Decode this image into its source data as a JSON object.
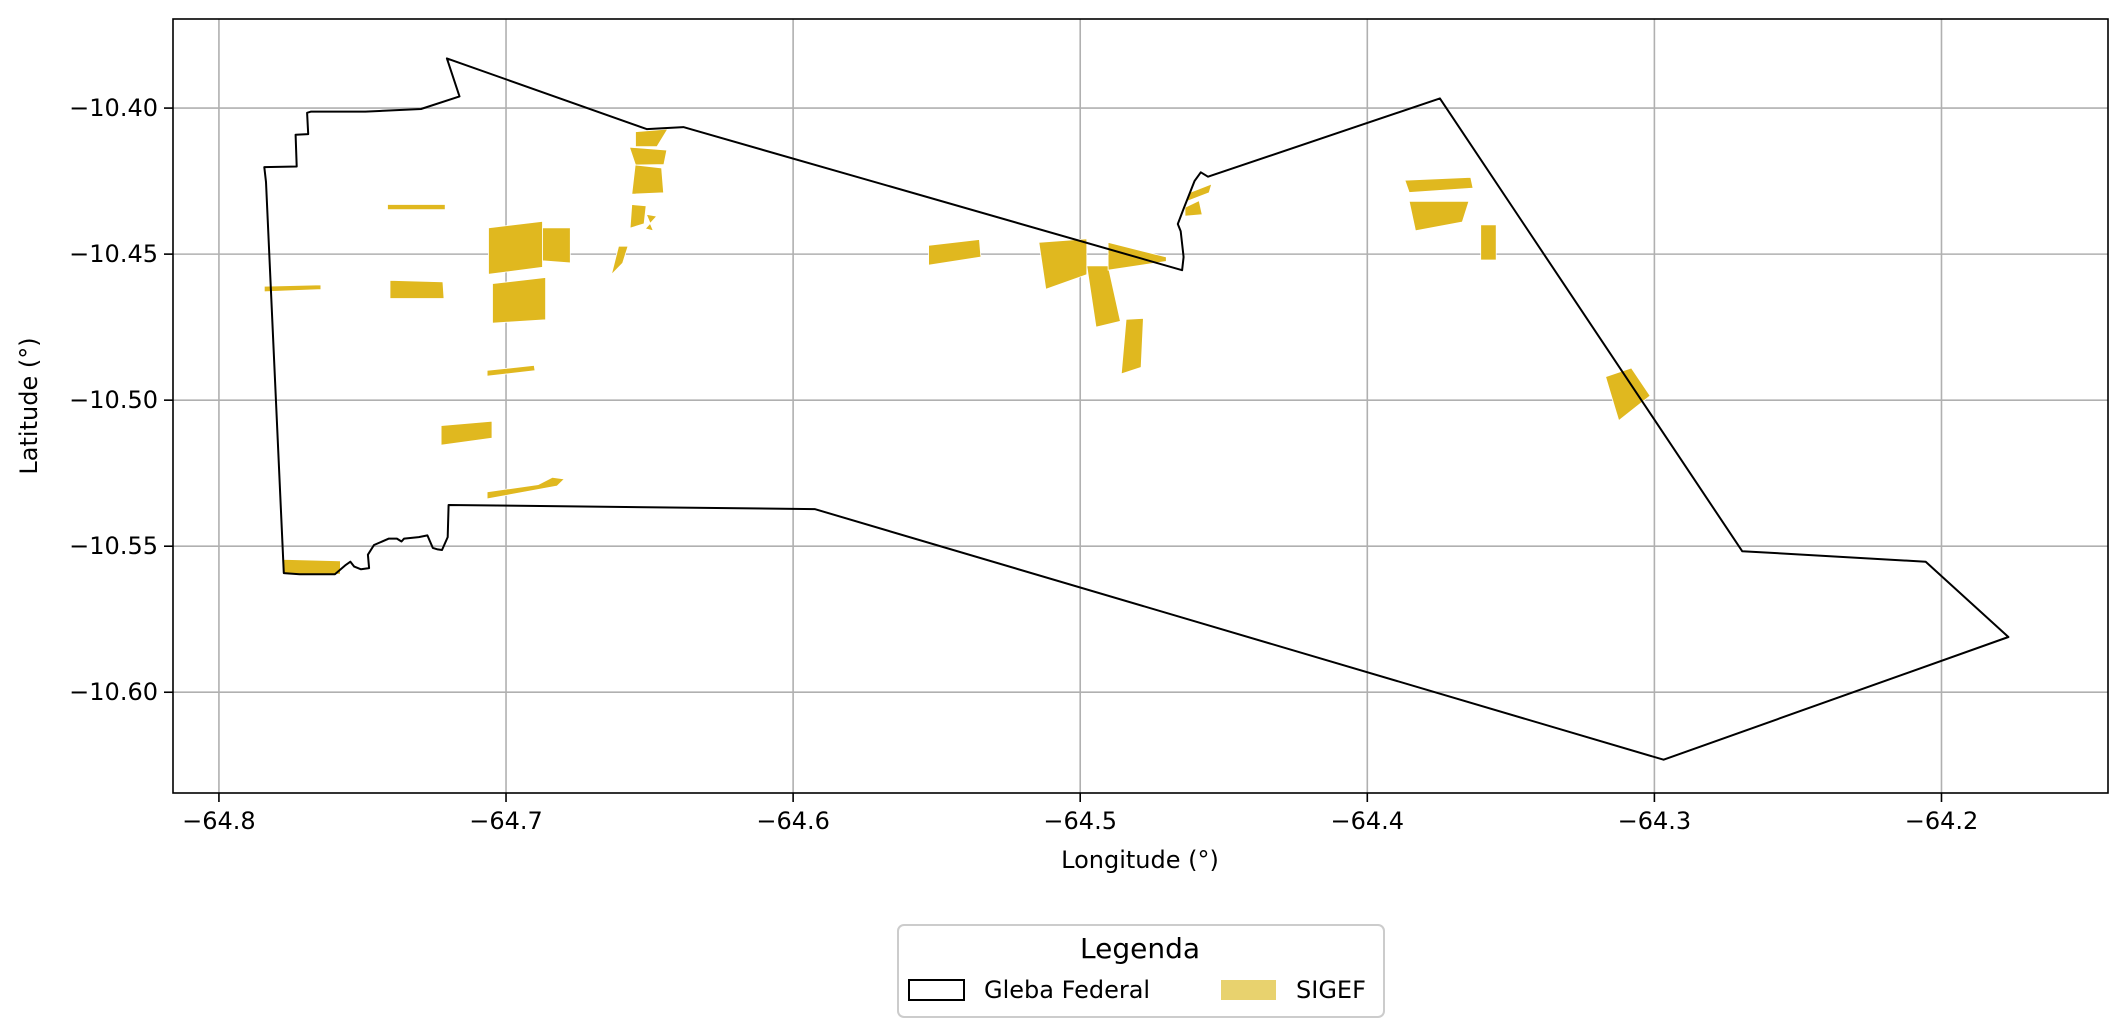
{
  "chart_data": {
    "type": "map",
    "xlabel": "Longitude (°)",
    "ylabel": "Latitude (°)",
    "xlim": [
      -64.816,
      -64.142
    ],
    "ylim": [
      -10.6345,
      -10.3695
    ],
    "grid": true,
    "x_ticks": [
      {
        "value": -64.8,
        "label": "−64.8"
      },
      {
        "value": -64.7,
        "label": "−64.7"
      },
      {
        "value": -64.6,
        "label": "−64.6"
      },
      {
        "value": -64.5,
        "label": "−64.5"
      },
      {
        "value": -64.4,
        "label": "−64.4"
      },
      {
        "value": -64.3,
        "label": "−64.3"
      },
      {
        "value": -64.2,
        "label": "−64.2"
      }
    ],
    "y_ticks": [
      {
        "value": -10.4,
        "label": "−10.40"
      },
      {
        "value": -10.45,
        "label": "−10.45"
      },
      {
        "value": -10.5,
        "label": "−10.50"
      },
      {
        "value": -10.55,
        "label": "−10.55"
      },
      {
        "value": -10.6,
        "label": "−10.60"
      }
    ],
    "legend": {
      "title": "Legenda",
      "placement": "below-center",
      "entries": [
        {
          "label": "Gleba Federal",
          "style": "outline",
          "color": "#000000"
        },
        {
          "label": "SIGEF",
          "style": "fill",
          "color": "#e8d26e"
        }
      ]
    },
    "gleba_boundary": {
      "name": "Gleba Federal",
      "stroke_color": "#000000",
      "coordinates": [
        [
          -64.7206,
          -10.383
        ],
        [
          -64.7162,
          -10.396
        ],
        [
          -64.7296,
          -10.4003
        ],
        [
          -64.749,
          -10.4012
        ],
        [
          -64.7679,
          -10.4012
        ],
        [
          -64.7693,
          -10.4016
        ],
        [
          -64.7689,
          -10.4089
        ],
        [
          -64.7733,
          -10.4091
        ],
        [
          -64.7729,
          -10.42
        ],
        [
          -64.7842,
          -10.4202
        ],
        [
          -64.7836,
          -10.4253
        ],
        [
          -64.7774,
          -10.5592
        ],
        [
          -64.7719,
          -10.5596
        ],
        [
          -64.7596,
          -10.5596
        ],
        [
          -64.7558,
          -10.5564
        ],
        [
          -64.7542,
          -10.5553
        ],
        [
          -64.7529,
          -10.557
        ],
        [
          -64.7505,
          -10.5579
        ],
        [
          -64.7477,
          -10.5575
        ],
        [
          -64.7481,
          -10.5529
        ],
        [
          -64.746,
          -10.5496
        ],
        [
          -64.7408,
          -10.5474
        ],
        [
          -64.738,
          -10.5474
        ],
        [
          -64.7364,
          -10.5484
        ],
        [
          -64.7355,
          -10.5474
        ],
        [
          -64.7304,
          -10.5469
        ],
        [
          -64.7274,
          -10.5463
        ],
        [
          -64.7255,
          -10.5506
        ],
        [
          -64.7238,
          -10.5511
        ],
        [
          -64.7223,
          -10.5513
        ],
        [
          -64.7203,
          -10.5469
        ],
        [
          -64.72,
          -10.5359
        ],
        [
          -64.5925,
          -10.5373
        ],
        [
          -64.2968,
          -10.6231
        ],
        [
          -64.1767,
          -10.5811
        ],
        [
          -64.2055,
          -10.5553
        ],
        [
          -64.2694,
          -10.5517
        ],
        [
          -64.3747,
          -10.3967
        ],
        [
          -64.4555,
          -10.4235
        ],
        [
          -64.458,
          -10.422
        ],
        [
          -64.4602,
          -10.425
        ],
        [
          -64.464,
          -10.4345
        ],
        [
          -64.466,
          -10.4397
        ],
        [
          -64.465,
          -10.4422
        ],
        [
          -64.464,
          -10.451
        ],
        [
          -64.4645,
          -10.4555
        ],
        [
          -64.6382,
          -10.4065
        ],
        [
          -64.651,
          -10.4072
        ],
        [
          -64.7206,
          -10.383
        ]
      ]
    },
    "sigef_parcels": {
      "name": "SIGEF",
      "fill_color": "#e0b81f",
      "polygons": [
        [
          [
            -64.7413,
            -10.433
          ],
          [
            -64.7212,
            -10.433
          ],
          [
            -64.7212,
            -10.4348
          ],
          [
            -64.7413,
            -10.4348
          ]
        ],
        [
          [
            -64.7061,
            -10.441
          ],
          [
            -64.7061,
            -10.4569
          ],
          [
            -64.6873,
            -10.4545
          ],
          [
            -64.6873,
            -10.4388
          ]
        ],
        [
          [
            -64.6873,
            -10.441
          ],
          [
            -64.6776,
            -10.441
          ],
          [
            -64.6776,
            -10.453
          ],
          [
            -64.6873,
            -10.4523
          ]
        ],
        [
          [
            -64.7047,
            -10.4601
          ],
          [
            -64.7047,
            -10.4736
          ],
          [
            -64.6862,
            -10.4725
          ],
          [
            -64.6862,
            -10.458
          ]
        ],
        [
          [
            -64.7404,
            -10.459
          ],
          [
            -64.722,
            -10.4595
          ],
          [
            -64.7216,
            -10.4652
          ],
          [
            -64.7404,
            -10.4652
          ]
        ],
        [
          [
            -64.7842,
            -10.461
          ],
          [
            -64.7645,
            -10.4605
          ],
          [
            -64.7645,
            -10.4621
          ],
          [
            -64.7842,
            -10.4629
          ]
        ],
        [
          [
            -64.7066,
            -10.4898
          ],
          [
            -64.6902,
            -10.4881
          ],
          [
            -64.6899,
            -10.4899
          ],
          [
            -64.7066,
            -10.4918
          ]
        ],
        [
          [
            -64.7226,
            -10.5087
          ],
          [
            -64.7226,
            -10.5154
          ],
          [
            -64.7049,
            -10.513
          ],
          [
            -64.7049,
            -10.5072
          ]
        ],
        [
          [
            -64.7066,
            -10.5314
          ],
          [
            -64.6888,
            -10.5289
          ],
          [
            -64.6838,
            -10.5264
          ],
          [
            -64.6797,
            -10.527
          ],
          [
            -64.6822,
            -10.5294
          ],
          [
            -64.7066,
            -10.5338
          ]
        ],
        [
          [
            -64.7778,
            -10.5545
          ],
          [
            -64.7577,
            -10.555
          ],
          [
            -64.7577,
            -10.5596
          ],
          [
            -64.7778,
            -10.5596
          ]
        ],
        [
          [
            -64.6549,
            -10.4081
          ],
          [
            -64.6549,
            -10.4132
          ],
          [
            -64.6474,
            -10.4132
          ],
          [
            -64.6437,
            -10.4072
          ]
        ],
        [
          [
            -64.657,
            -10.4134
          ],
          [
            -64.644,
            -10.4144
          ],
          [
            -64.645,
            -10.4193
          ],
          [
            -64.6549,
            -10.4195
          ]
        ],
        [
          [
            -64.655,
            -10.4195
          ],
          [
            -64.6458,
            -10.4205
          ],
          [
            -64.6451,
            -10.429
          ],
          [
            -64.6562,
            -10.4295
          ]
        ],
        [
          [
            -64.6562,
            -10.433
          ],
          [
            -64.6568,
            -10.4411
          ],
          [
            -64.6519,
            -10.4396
          ],
          [
            -64.6512,
            -10.4335
          ]
        ],
        [
          [
            -64.6511,
            -10.4364
          ],
          [
            -64.6475,
            -10.437
          ],
          [
            -64.6515,
            -10.4413
          ],
          [
            -64.6487,
            -10.442
          ]
        ],
        [
          [
            -64.6608,
            -10.4473
          ],
          [
            -64.6575,
            -10.4473
          ],
          [
            -64.6594,
            -10.4531
          ],
          [
            -64.6633,
            -10.457
          ]
        ],
        [
          [
            -64.5528,
            -10.447
          ],
          [
            -64.5351,
            -10.445
          ],
          [
            -64.5346,
            -10.451
          ],
          [
            -64.5528,
            -10.4538
          ]
        ],
        [
          [
            -64.5144,
            -10.446
          ],
          [
            -64.4977,
            -10.4448
          ],
          [
            -64.4977,
            -10.457
          ],
          [
            -64.512,
            -10.462
          ]
        ],
        [
          [
            -64.4977,
            -10.454
          ],
          [
            -64.4903,
            -10.454
          ],
          [
            -64.486,
            -10.473
          ],
          [
            -64.4945,
            -10.475
          ]
        ],
        [
          [
            -64.4903,
            -10.446
          ],
          [
            -64.47,
            -10.451
          ],
          [
            -64.47,
            -10.4525
          ],
          [
            -64.4903,
            -10.4555
          ]
        ],
        [
          [
            -64.484,
            -10.4723
          ],
          [
            -64.478,
            -10.472
          ],
          [
            -64.4788,
            -10.4888
          ],
          [
            -64.4857,
            -10.491
          ]
        ],
        [
          [
            -64.4586,
            -10.4317
          ],
          [
            -64.4575,
            -10.4365
          ],
          [
            -64.4635,
            -10.437
          ],
          [
            -64.4635,
            -10.434
          ]
        ],
        [
          [
            -64.4551,
            -10.429
          ],
          [
            -64.4542,
            -10.426
          ],
          [
            -64.462,
            -10.429
          ],
          [
            -64.463,
            -10.432
          ]
        ],
        [
          [
            -64.3869,
            -10.4247
          ],
          [
            -64.3854,
            -10.4289
          ],
          [
            -64.3632,
            -10.4274
          ],
          [
            -64.364,
            -10.4237
          ]
        ],
        [
          [
            -64.3854,
            -10.4319
          ],
          [
            -64.3646,
            -10.4319
          ],
          [
            -64.3669,
            -10.439
          ],
          [
            -64.3832,
            -10.442
          ]
        ],
        [
          [
            -64.3605,
            -10.44
          ],
          [
            -64.3551,
            -10.44
          ],
          [
            -64.3551,
            -10.452
          ],
          [
            -64.3605,
            -10.452
          ]
        ],
        [
          [
            -64.317,
            -10.492
          ],
          [
            -64.308,
            -10.489
          ],
          [
            -64.3015,
            -10.4985
          ],
          [
            -64.3124,
            -10.507
          ]
        ]
      ]
    }
  }
}
